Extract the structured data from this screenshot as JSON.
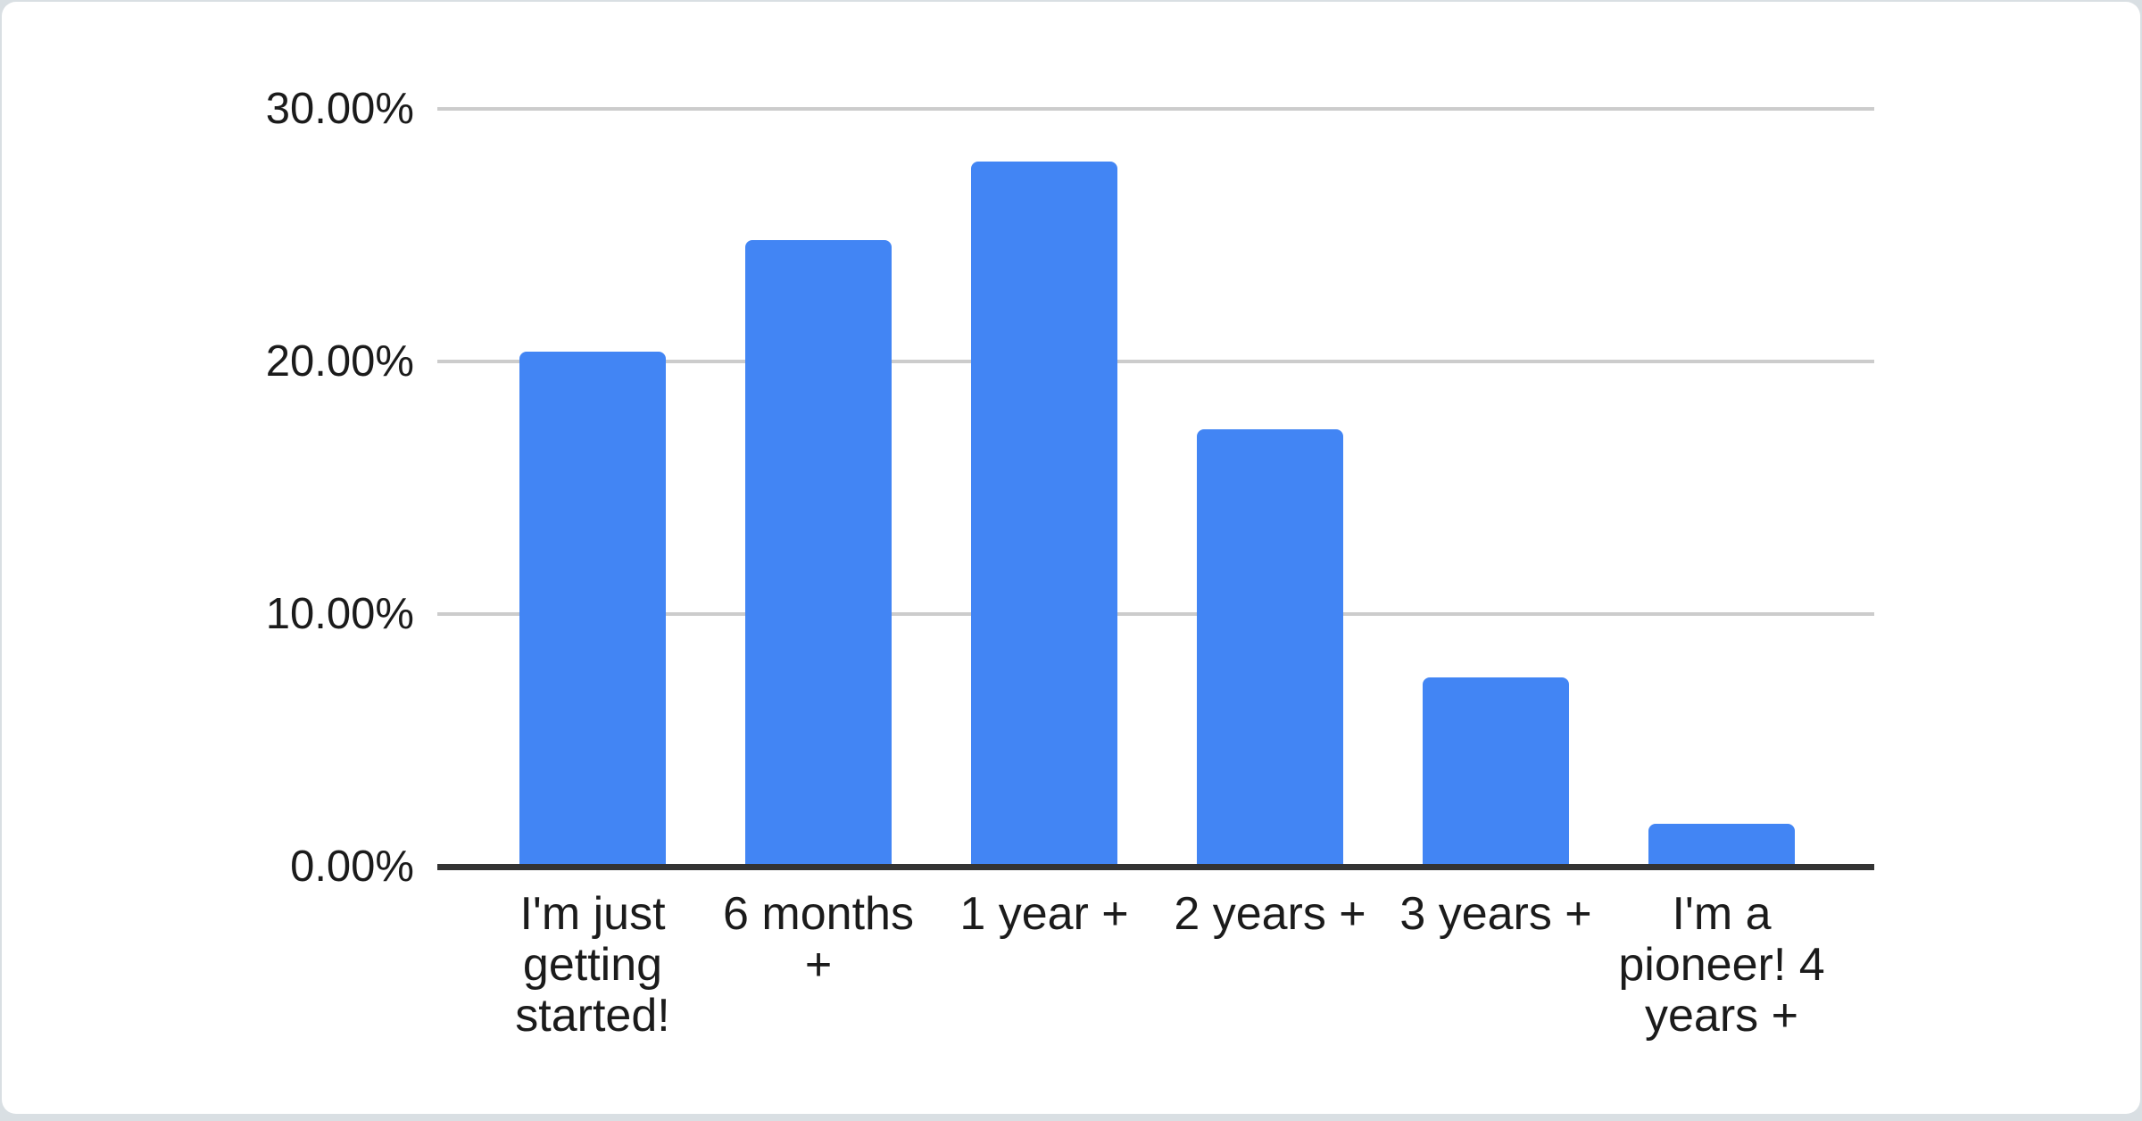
{
  "chart_data": {
    "type": "bar",
    "title": "",
    "xlabel": "",
    "ylabel": "",
    "categories": [
      "I'm just getting started!",
      "6 months +",
      "1 year +",
      "2 years +",
      "3 years +",
      "I'm a pioneer! 4 years +"
    ],
    "values": [
      20.4,
      24.8,
      27.9,
      17.3,
      7.5,
      1.7
    ],
    "value_unit": "%",
    "ylim": [
      0,
      30
    ],
    "y_ticks": [
      {
        "value": 30,
        "label": "30.00%"
      },
      {
        "value": 20,
        "label": "20.00%"
      },
      {
        "value": 10,
        "label": "10.00%"
      },
      {
        "value": 0,
        "label": "0.00%"
      }
    ],
    "grid": true,
    "legend_position": "none",
    "colors": {
      "bar": "#4285F4",
      "gridline": "#cccccc",
      "axis_line": "#333333",
      "tick_label": "#1b1b1b",
      "card_background": "#ffffff",
      "page_edge": "#d9dfe3"
    }
  }
}
